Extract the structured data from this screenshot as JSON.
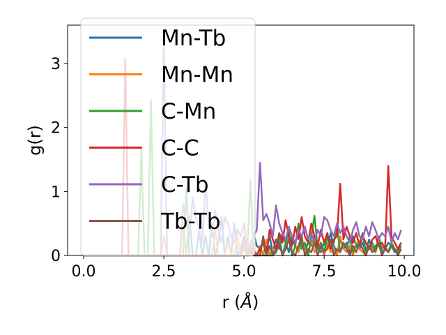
{
  "chart_data": {
    "type": "line",
    "xlabel": "r (",
    "xlabel_unit": "Å",
    "xlabel_close": ")",
    "ylabel": "g(r)",
    "xlim": [
      -0.5,
      10.3
    ],
    "ylim": [
      0,
      3.6
    ],
    "xticks": [
      0.0,
      2.5,
      5.0,
      7.5,
      10.0
    ],
    "xtick_labels": [
      "0.0",
      "2.5",
      "5.0",
      "7.5",
      "10.0"
    ],
    "yticks": [
      0,
      1,
      2,
      3
    ],
    "ytick_labels": [
      "0",
      "1",
      "2",
      "3"
    ],
    "grid": false,
    "legend_position": "upper-left",
    "x": [
      0.0,
      0.1,
      0.2,
      0.3,
      0.4,
      0.5,
      0.6,
      0.7,
      0.8,
      0.9,
      1.0,
      1.1,
      1.2,
      1.3,
      1.4,
      1.5,
      1.6,
      1.7,
      1.8,
      1.9,
      2.0,
      2.1,
      2.2,
      2.3,
      2.4,
      2.5,
      2.6,
      2.7,
      2.8,
      2.9,
      3.0,
      3.1,
      3.2,
      3.3,
      3.4,
      3.5,
      3.6,
      3.7,
      3.8,
      3.9,
      4.0,
      4.1,
      4.2,
      4.3,
      4.4,
      4.5,
      4.6,
      4.7,
      4.8,
      4.9,
      5.0,
      5.1,
      5.2,
      5.3,
      5.4,
      5.5,
      5.6,
      5.7,
      5.8,
      5.9,
      6.0,
      6.1,
      6.2,
      6.3,
      6.4,
      6.5,
      6.6,
      6.7,
      6.8,
      6.9,
      7.0,
      7.1,
      7.2,
      7.3,
      7.4,
      7.5,
      7.6,
      7.7,
      7.8,
      7.9,
      8.0,
      8.1,
      8.2,
      8.3,
      8.4,
      8.5,
      8.6,
      8.7,
      8.8,
      8.9,
      9.0,
      9.1,
      9.2,
      9.3,
      9.4,
      9.5,
      9.6,
      9.7,
      9.8,
      9.9
    ],
    "series": [
      {
        "name": "Mn-Tb",
        "color": "#1f77b4",
        "values": [
          0,
          0,
          0,
          0,
          0,
          0,
          0,
          0,
          0,
          0,
          0,
          0,
          0,
          0,
          0,
          0,
          0,
          0,
          0,
          0,
          0,
          0,
          0,
          0,
          0,
          0,
          0,
          0,
          0,
          0,
          0,
          0,
          0,
          0.6,
          0,
          0,
          0.4,
          0,
          0.3,
          0,
          0.5,
          0,
          0.2,
          0.6,
          0,
          0.3,
          0,
          0.5,
          0,
          0.1,
          0.3,
          0.2,
          0,
          0.35,
          0.15,
          0.1,
          0.2,
          0.1,
          0.3,
          0.05,
          0.25,
          0.1,
          0.35,
          0.2,
          0.05,
          0.3,
          0.15,
          0.1,
          0.25,
          0.05,
          0.2,
          0.15,
          0.3,
          0.1,
          0.05,
          0.2,
          0.1,
          0.35,
          0.15,
          0.05,
          0.25,
          0.1,
          0.2,
          0.05,
          0.3,
          0.15,
          0.1,
          0.2,
          0.05,
          0.25,
          0.1,
          0.15,
          0.2,
          0.05,
          0.1,
          0.2,
          0.15,
          0.05,
          0.1,
          0.2
        ]
      },
      {
        "name": "Mn-Mn",
        "color": "#ff7f0e",
        "values": [
          0,
          0,
          0,
          0,
          0,
          0,
          0,
          0,
          0,
          0,
          0,
          0,
          0,
          0,
          0,
          0,
          0,
          0,
          0,
          0,
          0,
          0,
          0,
          0,
          0,
          0.3,
          0,
          0,
          0,
          0,
          0,
          0.5,
          0,
          0,
          0,
          0,
          0,
          0,
          0,
          0,
          0,
          0.4,
          0,
          0,
          0,
          0.2,
          0,
          0,
          0.3,
          0,
          0.1,
          0,
          0.2,
          0,
          0,
          0.15,
          0,
          0.25,
          0,
          0.1,
          0.05,
          0.2,
          0,
          0.1,
          0.3,
          0,
          0.15,
          0.05,
          0.2,
          0.1,
          0,
          0.25,
          0.05,
          0.1,
          0.15,
          0,
          0.2,
          0.05,
          0.1,
          0,
          0.3,
          0.1,
          0.05,
          0.15,
          0,
          0.2,
          0.1,
          0.05,
          0,
          0.15,
          0.1,
          0.05,
          0.2,
          0,
          0.1,
          0.05,
          0.15,
          0.1,
          0.05,
          0.1
        ]
      },
      {
        "name": "C-Mn",
        "color": "#2ca02c",
        "values": [
          0,
          0,
          0,
          0,
          0,
          0,
          0,
          0,
          0,
          0,
          0,
          0,
          0,
          0,
          0,
          0,
          0,
          0,
          1.65,
          0,
          0,
          2.42,
          0,
          0,
          0,
          0,
          0,
          0,
          0,
          0,
          0,
          0,
          1.05,
          0,
          0,
          0,
          0,
          0,
          0,
          0,
          0,
          0,
          0,
          0,
          0,
          0,
          0,
          0,
          0,
          0,
          0,
          0,
          1.18,
          0,
          0,
          0,
          0,
          0,
          0,
          0,
          0.1,
          0.3,
          0,
          0.2,
          0.4,
          0,
          0.15,
          0.5,
          0.1,
          0.2,
          0,
          0.3,
          0.62,
          0.1,
          0.2,
          0.05,
          0.3,
          0.1,
          0.2,
          0.45,
          0.05,
          0.2,
          0.1,
          0.3,
          0.05,
          0.15,
          0.2,
          0.35,
          0.05,
          0.1,
          0.2,
          0.05,
          0.3,
          0.1,
          0.15,
          0.05,
          0.2,
          0.1,
          0.05,
          0.15
        ]
      },
      {
        "name": "C-C",
        "color": "#d62728",
        "values": [
          0,
          0,
          0,
          0,
          0,
          0,
          0,
          0,
          0,
          0,
          0,
          0,
          0,
          3.07,
          0,
          0,
          0,
          0,
          0,
          0,
          0,
          0,
          0,
          0,
          0,
          0,
          0,
          0,
          0,
          0,
          0,
          0,
          0,
          0,
          0,
          0,
          0,
          0,
          0,
          0,
          0,
          0,
          0,
          0,
          0,
          0,
          0,
          0,
          0,
          0,
          0.3,
          0,
          0.15,
          0,
          0,
          0.1,
          0.2,
          0,
          0.4,
          0.25,
          0.1,
          0.35,
          0.2,
          0.55,
          0.3,
          0.15,
          0.45,
          0.25,
          0.6,
          0.3,
          0.2,
          0.5,
          0.3,
          0.15,
          0.4,
          0.2,
          0.35,
          0.1,
          0.25,
          0.3,
          1.12,
          0.25,
          0.45,
          0.3,
          0.2,
          0.35,
          0.15,
          0.3,
          0.2,
          0.1,
          0.25,
          0.3,
          0.15,
          0.2,
          0.1,
          1.4,
          0.3,
          0.2,
          0.1,
          0.2
        ]
      },
      {
        "name": "C-Tb",
        "color": "#9467bd",
        "values": [
          0,
          0,
          0,
          0,
          0,
          0,
          0,
          0,
          0,
          0,
          0,
          0,
          0,
          0,
          0,
          0,
          0,
          0,
          0,
          0,
          0,
          0,
          0,
          0,
          0,
          3.38,
          0,
          0,
          0,
          0,
          0,
          0.8,
          0.5,
          0.3,
          0.9,
          0.6,
          0.4,
          0.2,
          1.15,
          0.5,
          0.3,
          0.7,
          0.4,
          0.2,
          0.6,
          0.5,
          0.3,
          0.2,
          0.4,
          0.3,
          0.5,
          0.1,
          0.2,
          0.3,
          0.4,
          1.45,
          0.55,
          0.65,
          0.5,
          0.3,
          0.78,
          0.5,
          0.35,
          0.25,
          0.45,
          0.3,
          0.2,
          0.4,
          0.3,
          0.45,
          0.25,
          0.35,
          0.2,
          0.4,
          0.3,
          0.6,
          0.55,
          0.4,
          0.3,
          0.5,
          0.35,
          0.45,
          0.3,
          0.2,
          0.4,
          0.52,
          0.3,
          0.25,
          0.45,
          0.3,
          0.52,
          0.4,
          0.25,
          0.35,
          0.3,
          0.45,
          0.2,
          0.35,
          0.25,
          0.4
        ]
      },
      {
        "name": "Tb-Tb",
        "color": "#8c564b",
        "values": [
          0,
          0,
          0,
          0,
          0,
          0,
          0,
          0,
          0,
          0,
          0,
          0,
          0,
          0,
          0,
          0,
          0,
          0,
          0,
          0,
          0,
          0,
          0,
          0,
          0,
          0,
          0,
          0,
          0,
          0,
          0,
          0,
          0,
          0,
          0,
          0,
          0,
          0,
          0,
          0,
          0,
          0,
          0,
          0,
          0,
          0,
          0,
          0,
          0,
          0,
          0.2,
          0,
          0,
          0.1,
          0,
          0,
          0.3,
          0,
          0.15,
          0,
          0.05,
          0.2,
          0,
          0.1,
          0.25,
          0.05,
          0,
          0.15,
          0.3,
          0,
          0.1,
          0.05,
          0.2,
          0,
          0.15,
          0.05,
          0.1,
          0.25,
          0,
          0.1,
          0.05,
          0.2,
          0.1,
          0,
          0.15,
          0.05,
          0.2,
          0.1,
          0,
          0.15,
          0.05,
          0.1,
          0.2,
          0,
          0.1,
          0.05,
          0.15,
          0.1,
          0,
          0.1
        ]
      }
    ]
  }
}
